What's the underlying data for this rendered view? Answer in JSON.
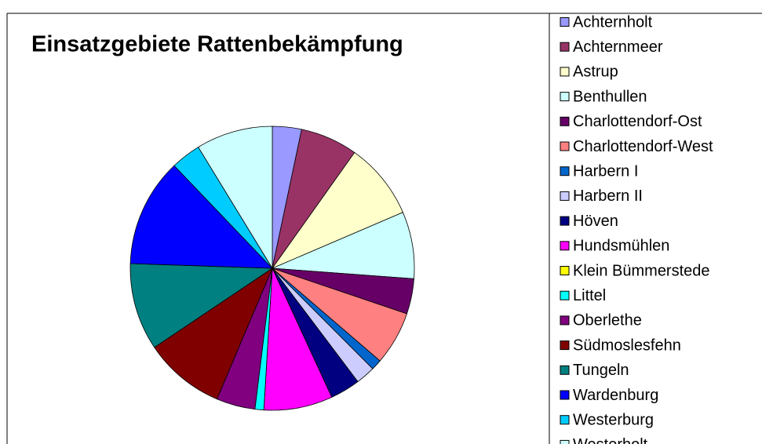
{
  "chart_data": {
    "type": "pie",
    "title": "Einsatzgebiete Rattenbekämpfung",
    "categories": [
      "Achternholt",
      "Achternmeer",
      "Astrup",
      "Benthullen",
      "Charlottendorf-Ost",
      "Charlottendorf-West",
      "Harbern I",
      "Harbern II",
      "Höven",
      "Hundsmühlen",
      "Klein Bümmerstede",
      "Littel",
      "Oberlethe",
      "Südmoslesfehn",
      "Tungeln",
      "Wardenburg",
      "Westerburg",
      "Westerholt"
    ],
    "values": [
      3.3,
      6.5,
      8.7,
      7.6,
      4,
      6.1,
      1.2,
      2.2,
      3.4,
      7.8,
      0,
      1,
      4.4,
      9.2,
      9.9,
      12.3,
      3.4,
      8.7
    ],
    "colors": [
      "#9999ff",
      "#993366",
      "#ffffcc",
      "#ccffff",
      "#660066",
      "#ff8080",
      "#0066cc",
      "#ccccff",
      "#000080",
      "#ff00ff",
      "#ffff00",
      "#00ffff",
      "#800080",
      "#800000",
      "#008080",
      "#0000ff",
      "#00ccff",
      "#ccffff"
    ],
    "legend": "right"
  }
}
